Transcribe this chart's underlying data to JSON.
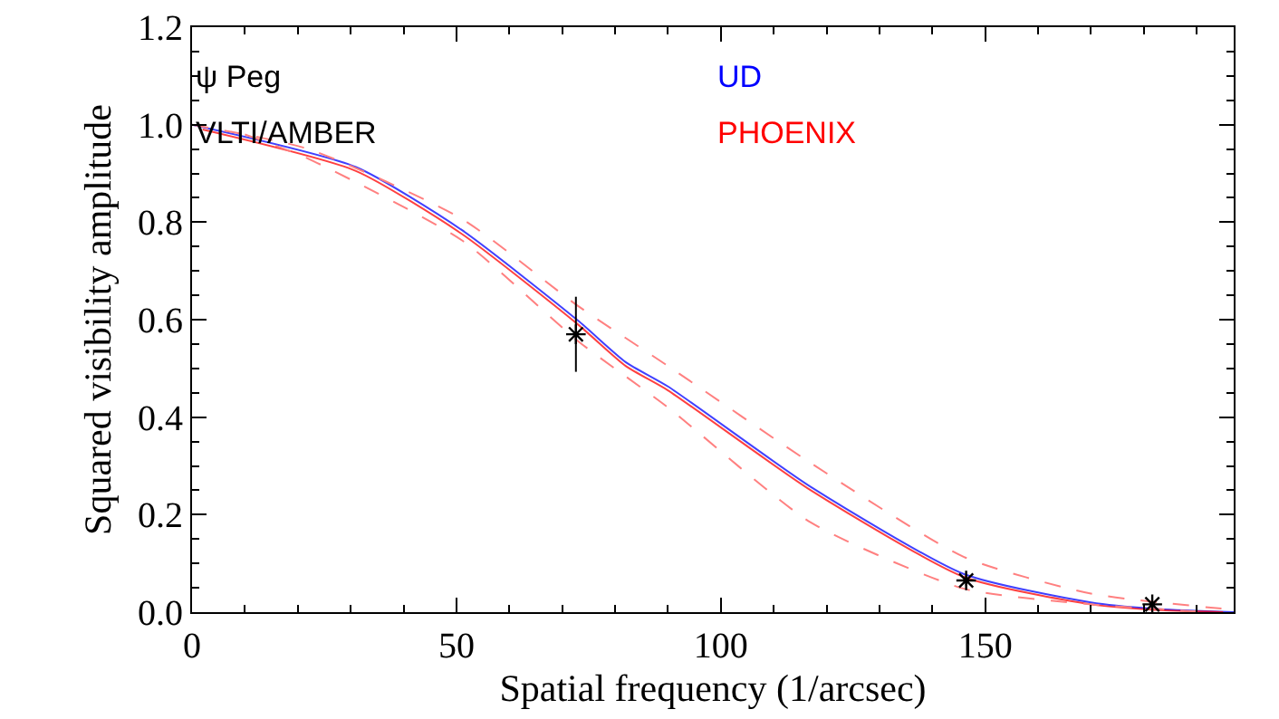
{
  "chart_data": {
    "type": "line",
    "xlabel": "Spatial frequency (1/arcsec)",
    "ylabel": "Squared visibility amplitude",
    "xlim": [
      0,
      197
    ],
    "xticks": [
      0,
      50,
      100,
      150
    ],
    "ylim": [
      0,
      1.2
    ],
    "yticks": [
      {
        "value": 0,
        "label": "0.0"
      },
      0.2,
      0.4,
      0.6,
      0.8,
      {
        "value": 1,
        "label": "1.0"
      },
      1.2
    ],
    "grid": false,
    "legend": false,
    "annotations": [
      "ψ Peg",
      "VLTI/AMBER"
    ],
    "series": [
      {
        "name": "UD",
        "color": "#0000ff",
        "line_style": "solid",
        "x": [
          0,
          31,
          51,
          73,
          82,
          90,
          117,
          146,
          170,
          183,
          197
        ],
        "values": [
          1.0,
          0.913,
          0.784,
          0.598,
          0.513,
          0.463,
          0.257,
          0.078,
          0.02,
          0.006,
          0.0
        ]
      },
      {
        "name": "PHOENIX",
        "color": "#ff0000",
        "line_style": "solid",
        "x": [
          2,
          31,
          51,
          73,
          82,
          90,
          117,
          146,
          170,
          183,
          195
        ],
        "values": [
          0.99,
          0.905,
          0.776,
          0.59,
          0.505,
          0.455,
          0.25,
          0.072,
          0.016,
          0.004,
          0.0
        ]
      },
      {
        "color": "#ff8080",
        "line_style": "dashed",
        "x": [
          0,
          22,
          51,
          73,
          90,
          117,
          146,
          170,
          197
        ],
        "values": [
          1.0,
          0.95,
          0.807,
          0.628,
          0.505,
          0.306,
          0.113,
          0.038,
          0.005
        ]
      },
      {
        "color": "#ff8080",
        "line_style": "dashed",
        "x": [
          10,
          22,
          51,
          73,
          90,
          117,
          146,
          170,
          192
        ],
        "values": [
          0.98,
          0.93,
          0.763,
          0.556,
          0.42,
          0.184,
          0.048,
          0.016,
          0.0
        ]
      },
      {
        "type": "scatter",
        "color": "#000000",
        "marker": "cross",
        "x": [
          72.6,
          146.4,
          181.6
        ],
        "values": [
          0.57,
          0.065,
          0.016
        ],
        "errors": [
          0.077,
          0.01,
          0.005
        ]
      }
    ]
  }
}
